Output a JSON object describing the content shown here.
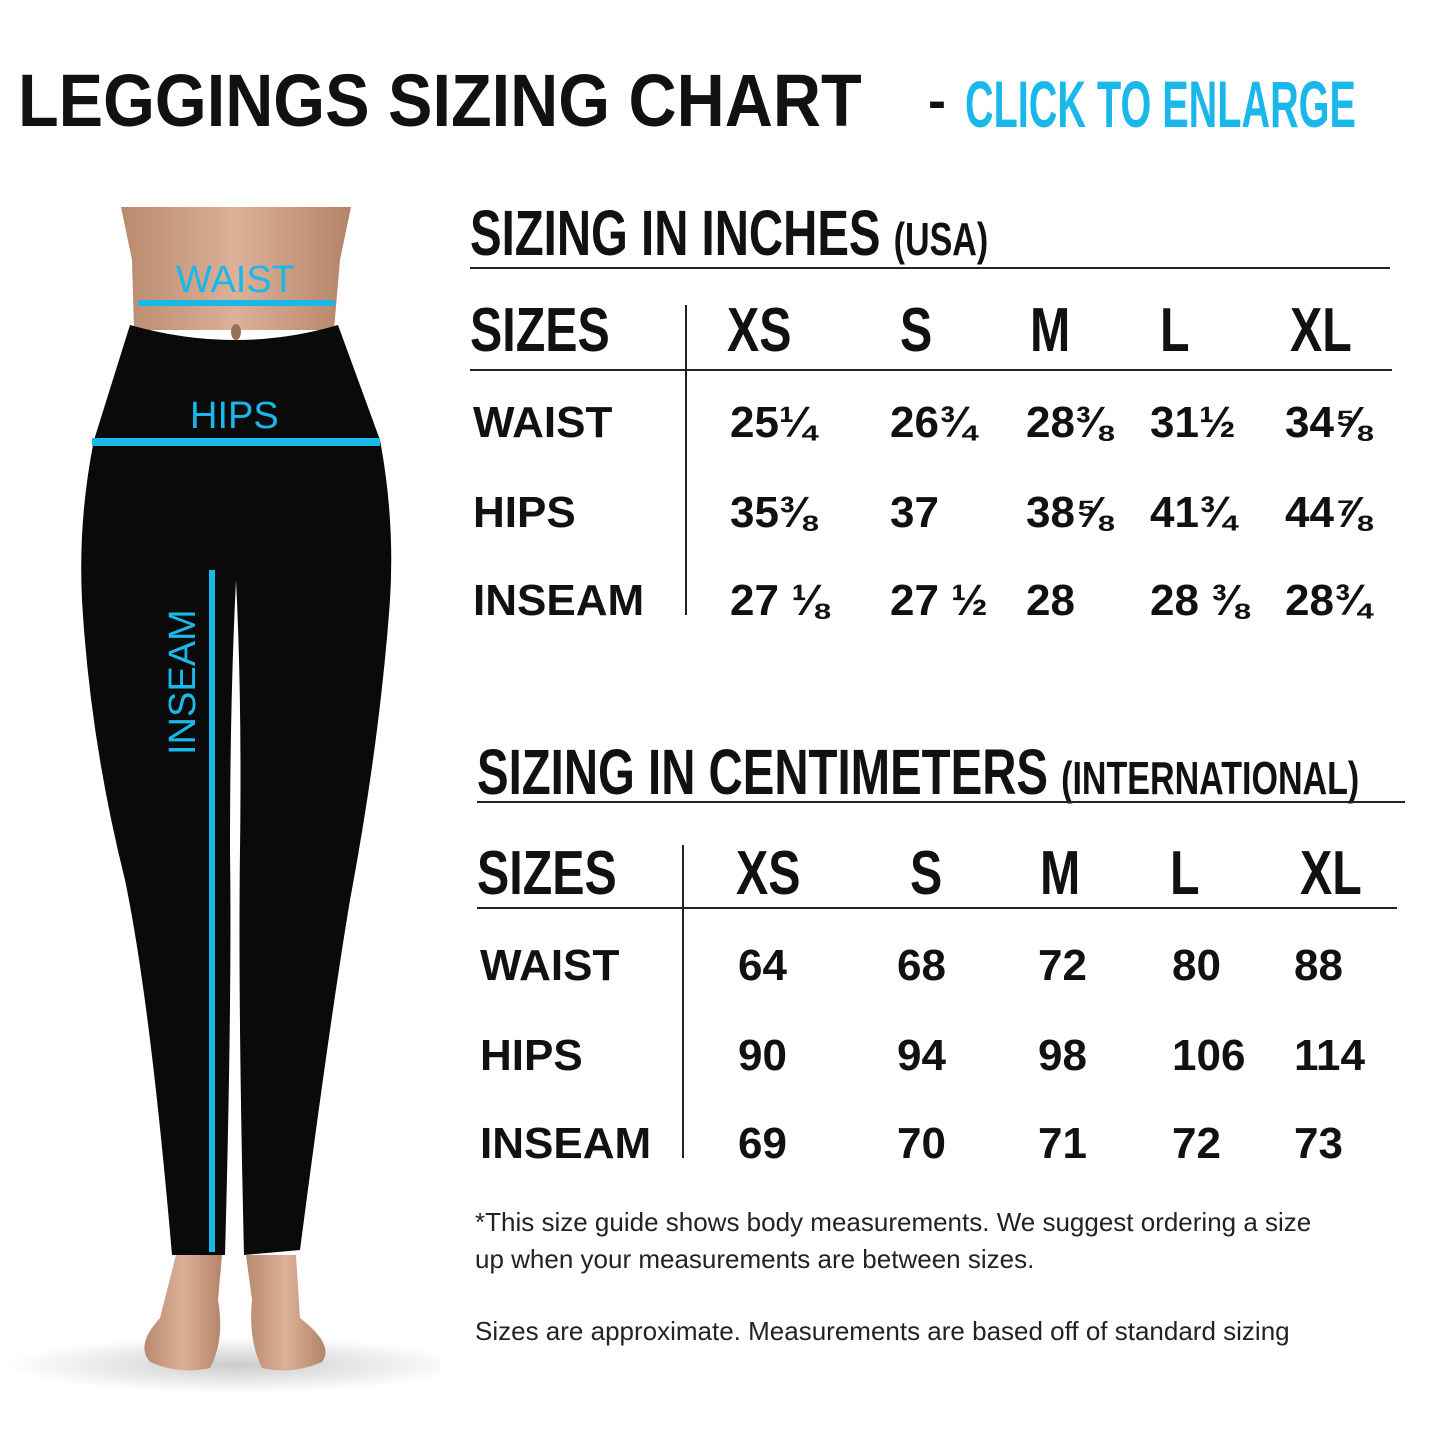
{
  "header": {
    "title": "LEGGINGS SIZING CHART",
    "separator": "-",
    "cta": "CLICK TO ENLARGE",
    "accent_color": "#1ab8ea"
  },
  "figure": {
    "labels": {
      "waist": "WAIST",
      "hips": "HIPS",
      "inseam": "INSEAM"
    }
  },
  "inches": {
    "title": "SIZING IN INCHES",
    "subtitle": "(USA)",
    "header": [
      "SIZES",
      "XS",
      "S",
      "M",
      "L",
      "XL"
    ],
    "rows": [
      {
        "label": "WAIST",
        "values": [
          "25¼",
          "26¾",
          "28⅜",
          "31½",
          "34⅝"
        ]
      },
      {
        "label": "HIPS",
        "values": [
          "35⅜",
          "37",
          "38⅝",
          "41¾",
          "44⅞"
        ]
      },
      {
        "label": "INSEAM",
        "values": [
          "27 ⅛",
          "27 ½",
          "28",
          "28 ⅜",
          "28¾"
        ]
      }
    ]
  },
  "cm": {
    "title": "SIZING IN CENTIMETERS",
    "subtitle": "(INTERNATIONAL)",
    "header": [
      "SIZES",
      "XS",
      "S",
      "M",
      "L",
      "XL"
    ],
    "rows": [
      {
        "label": "WAIST",
        "values": [
          "64",
          "68",
          "72",
          "80",
          "88"
        ]
      },
      {
        "label": "HIPS",
        "values": [
          "90",
          "94",
          "98",
          "106",
          "114"
        ]
      },
      {
        "label": "INSEAM",
        "values": [
          "69",
          "70",
          "71",
          "72",
          "73"
        ]
      }
    ]
  },
  "notes": {
    "line1": "*This size guide shows body measurements. We suggest ordering a size",
    "line2": "up when your measurements are between sizes.",
    "line3": "Sizes are approximate. Measurements are based off of standard sizing"
  }
}
